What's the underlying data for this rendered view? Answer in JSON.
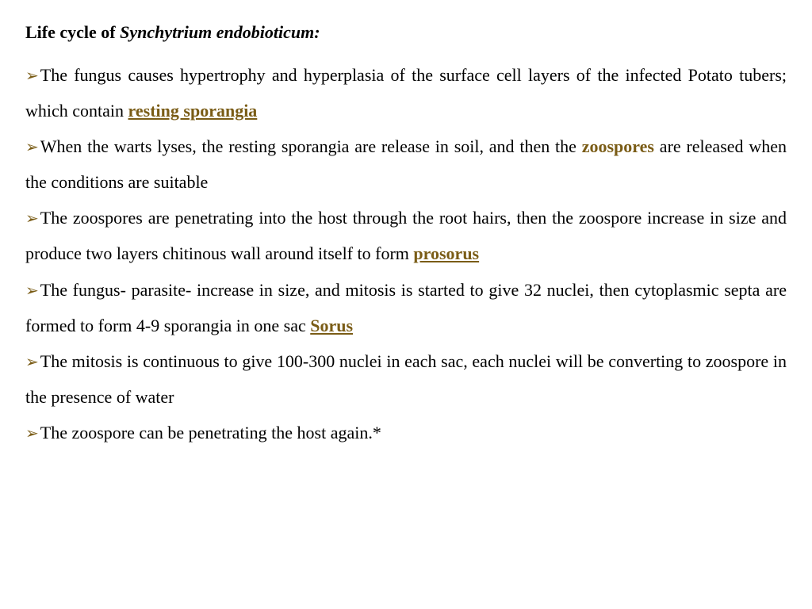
{
  "title": {
    "bold": "Life cycle of ",
    "italic": "Synchytrium endobioticum:"
  },
  "colors": {
    "accent": "#7a5c16",
    "text": "#000000",
    "background": "#ffffff"
  },
  "bullets": [
    {
      "pre": "The fungus causes hypertrophy and hyperplasia of the surface cell layers of the infected Potato tubers; which contain ",
      "term": "resting sporangia",
      "post": ""
    },
    {
      "pre": "When the warts lyses, the resting sporangia are release in soil, and then the ",
      "term_nounder": "zoospores",
      "post": " are released when the conditions are suitable"
    },
    {
      "pre": "The zoospores are penetrating into the host through the root hairs, then the zoospore increase in size and produce two layers chitinous wall around itself to form ",
      "term": "prosorus",
      "post": ""
    },
    {
      "pre": "The fungus- parasite- increase in size, and mitosis is started to give 32 nuclei, then cytoplasmic septa are formed to form 4-9 sporangia in one sac ",
      "term": "Sorus",
      "post": ""
    },
    {
      "pre": "The mitosis is continuous to give 100-300 nuclei in each sac, each nuclei will be converting to zoospore in the presence of water",
      "term": "",
      "post": ""
    },
    {
      "pre": "The zoospore can be penetrating the host again.*",
      "term": "",
      "post": ""
    }
  ]
}
